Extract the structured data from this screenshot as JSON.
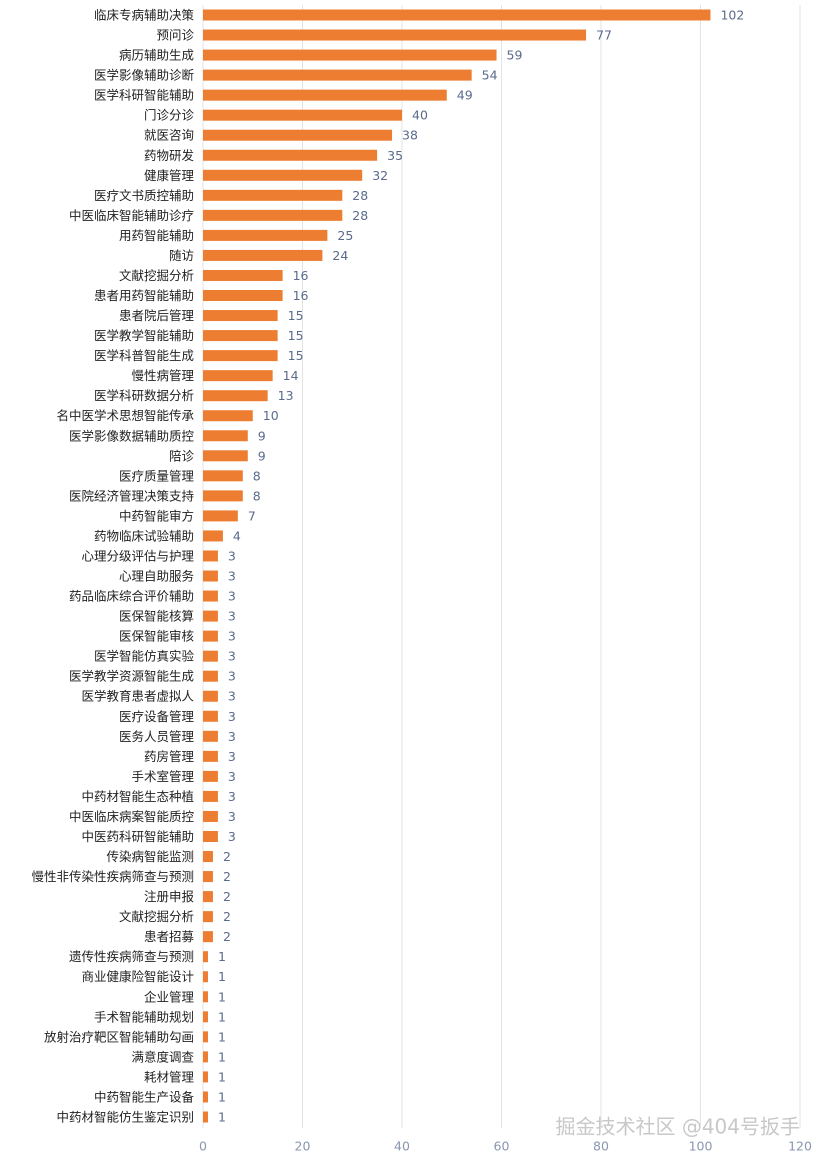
{
  "chart_data": {
    "type": "barh",
    "categories": [
      "临床专病辅助决策",
      "预问诊",
      "病历辅助生成",
      "医学影像辅助诊断",
      "医学科研智能辅助",
      "门诊分诊",
      "就医咨询",
      "药物研发",
      "健康管理",
      "医疗文书质控辅助",
      "中医临床智能辅助诊疗",
      "用药智能辅助",
      "随访",
      "文献挖掘分析",
      "患者用药智能辅助",
      "患者院后管理",
      "医学教学智能辅助",
      "医学科普智能生成",
      "慢性病管理",
      "医学科研数据分析",
      "名中医学术思想智能传承",
      "医学影像数据辅助质控",
      "陪诊",
      "医疗质量管理",
      "医院经济管理决策支持",
      "中药智能审方",
      "药物临床试验辅助",
      "心理分级评估与护理",
      "心理自助服务",
      "药品临床综合评价辅助",
      "医保智能核算",
      "医保智能审核",
      "医学智能仿真实验",
      "医学教学资源智能生成",
      "医学教育患者虚拟人",
      "医疗设备管理",
      "医务人员管理",
      "药房管理",
      "手术室管理",
      "中药材智能生态种植",
      "中医临床病案智能质控",
      "中医药科研智能辅助",
      "传染病智能监测",
      "慢性非传染性疾病筛查与预测",
      "注册申报",
      "文献挖掘分析",
      "患者招募",
      "遗传性疾病筛查与预测",
      "商业健康险智能设计",
      "企业管理",
      "手术智能辅助规划",
      "放射治疗靶区智能辅助勾画",
      "满意度调查",
      "耗材管理",
      "中药智能生产设备",
      "中药材智能仿生鉴定识别"
    ],
    "values": [
      102,
      77,
      59,
      54,
      49,
      40,
      38,
      35,
      32,
      28,
      28,
      25,
      24,
      16,
      16,
      15,
      15,
      15,
      14,
      13,
      10,
      9,
      9,
      8,
      8,
      7,
      4,
      3,
      3,
      3,
      3,
      3,
      3,
      3,
      3,
      3,
      3,
      3,
      3,
      3,
      3,
      3,
      2,
      2,
      2,
      2,
      2,
      1,
      1,
      1,
      1,
      1,
      1,
      1,
      1,
      1
    ],
    "color": "#ed7d31",
    "xlim": [
      0,
      120
    ],
    "xticks": [
      0,
      20,
      40,
      60,
      80,
      100,
      120
    ],
    "grid": true,
    "watermark": "掘金技术社区 @404号扳手"
  }
}
